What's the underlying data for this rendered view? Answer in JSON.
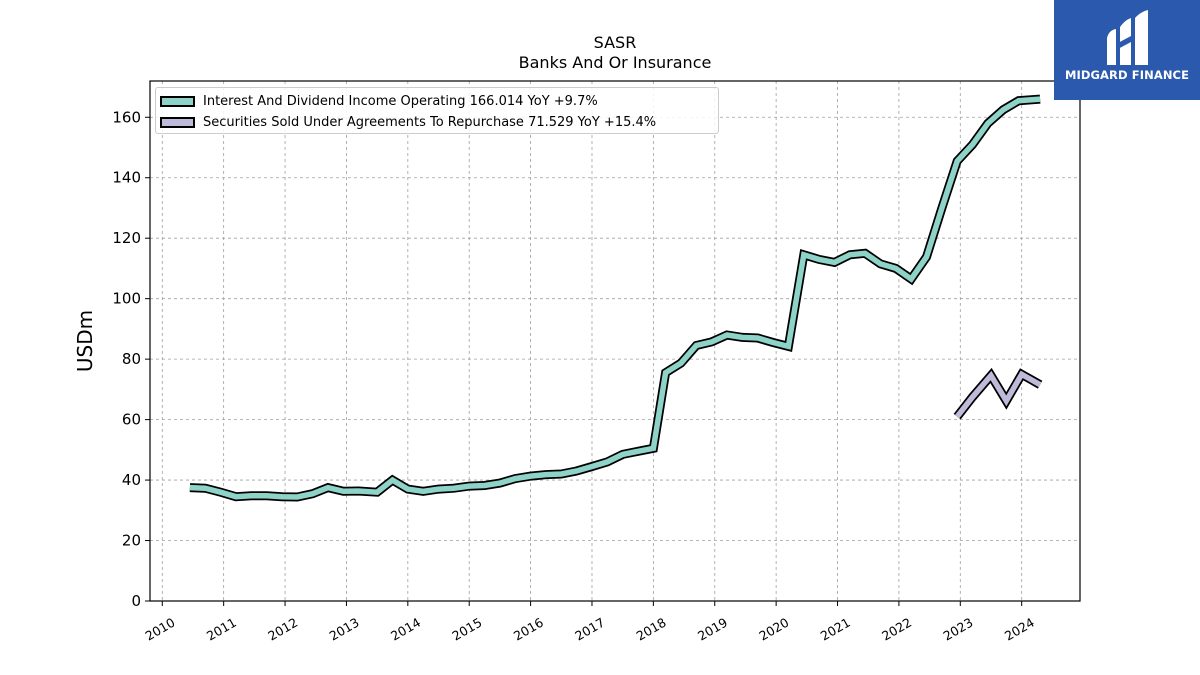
{
  "chart_data": {
    "type": "line",
    "title": "SASR",
    "subtitle": "Banks And Or Insurance",
    "xlabel": "",
    "ylabel": "USDm",
    "xlim": [
      2009.8,
      2024.95
    ],
    "ylim": [
      0,
      172
    ],
    "x_ticks": [
      2010,
      2011,
      2012,
      2013,
      2014,
      2015,
      2016,
      2017,
      2018,
      2019,
      2020,
      2021,
      2022,
      2023,
      2024
    ],
    "y_ticks": [
      0,
      20,
      40,
      60,
      80,
      100,
      120,
      140,
      160
    ],
    "grid": true,
    "legend_position": "top-left",
    "series": [
      {
        "name": "Interest And Dividend Income Operating",
        "legend_label": "Interest And Dividend Income Operating  166.014 YoY +9.7%",
        "color": "#8dd3c7",
        "x": [
          2010.45,
          2010.7,
          2010.95,
          2011.2,
          2011.45,
          2011.7,
          2011.95,
          2012.2,
          2012.45,
          2012.7,
          2012.95,
          2013.2,
          2013.5,
          2013.75,
          2014.0,
          2014.25,
          2014.5,
          2014.75,
          2015.0,
          2015.25,
          2015.5,
          2015.75,
          2016.0,
          2016.25,
          2016.5,
          2016.75,
          2017.0,
          2017.25,
          2017.5,
          2017.75,
          2018.0,
          2018.2,
          2018.45,
          2018.7,
          2018.95,
          2019.2,
          2019.45,
          2019.7,
          2019.95,
          2020.2,
          2020.45,
          2020.7,
          2020.95,
          2021.2,
          2021.45,
          2021.7,
          2021.95,
          2022.2,
          2022.45,
          2022.7,
          2022.95,
          2023.2,
          2023.45,
          2023.7,
          2023.95,
          2024.3
        ],
        "y": [
          37.5,
          37.3,
          36.0,
          34.5,
          34.8,
          34.8,
          34.5,
          34.4,
          35.5,
          37.5,
          36.3,
          36.4,
          36.0,
          40.0,
          37.0,
          36.3,
          37.0,
          37.3,
          38.0,
          38.2,
          39.0,
          40.5,
          41.3,
          41.8,
          42.0,
          43.0,
          44.5,
          46.0,
          48.5,
          49.5,
          50.5,
          75.5,
          78.7,
          84.5,
          85.7,
          88.0,
          87.2,
          87.0,
          85.5,
          84.2,
          114.5,
          113.0,
          112.0,
          114.5,
          115.0,
          111.5,
          110.0,
          106.5,
          113.8,
          130.0,
          145.5,
          151.0,
          158.0,
          162.5,
          165.5,
          166.014
        ]
      },
      {
        "name": "Securities Sold Under Agreements To Repurchase",
        "legend_label": "Securities Sold Under Agreements To Repurchase  71.529 YoY +15.4%",
        "color": "#bebada",
        "x": [
          2022.95,
          2023.2,
          2023.5,
          2023.75,
          2024.0,
          2024.3
        ],
        "y": [
          61.0,
          67.5,
          74.6,
          66.2,
          75.0,
          71.529
        ]
      }
    ]
  },
  "logo": {
    "text": "MIDGARD FINANCE"
  }
}
